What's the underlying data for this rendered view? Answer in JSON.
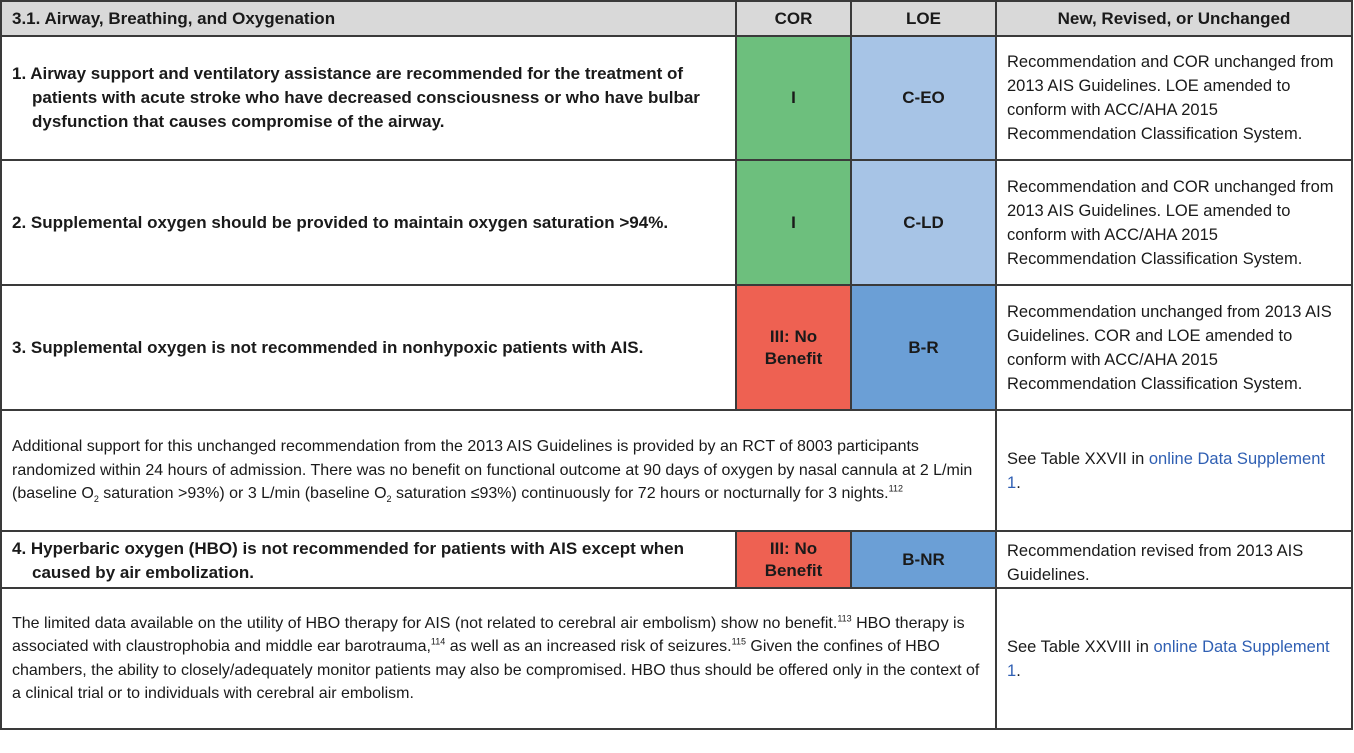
{
  "header": {
    "section": "3.1. Airway, Breathing, and Oxygenation",
    "cor": "COR",
    "loe": "LOE",
    "status": "New, Revised, or Unchanged"
  },
  "rows": [
    {
      "text": "1. Airway support and ventilatory assistance are recommended for the treatment of patients with acute stroke who have decreased consciousness or who have bulbar dysfunction that causes compromise of the airway.",
      "cor": "I",
      "loe": "C-EO",
      "status": "Recommendation and COR unchanged from 2013 AIS Guidelines. LOE amended to conform with ACC/AHA 2015 Recommendation Classification System."
    },
    {
      "text": "2. Supplemental oxygen should be provided to maintain oxygen saturation >94%.",
      "cor": "I",
      "loe": "C-LD",
      "status": "Recommendation and COR unchanged from 2013 AIS Guidelines. LOE amended to conform with ACC/AHA 2015 Recommendation Classification System."
    },
    {
      "text": "3. Supplemental oxygen is not recommended in nonhypoxic patients with AIS.",
      "cor_line1": "III: No",
      "cor_line2": "Benefit",
      "loe": "B-R",
      "status": "Recommendation unchanged from 2013 AIS Guidelines. COR and LOE amended to conform with ACC/AHA 2015 Recommendation Classification System."
    },
    {
      "text": "4. Hyperbaric oxygen (HBO) is not recommended for patients with AIS except when caused by air embolization.",
      "cor_line1": "III: No",
      "cor_line2": "Benefit",
      "loe": "B-NR",
      "status": "Recommendation revised from 2013 AIS Guidelines."
    }
  ],
  "note1": {
    "part_a": "Additional support for this unchanged recommendation from the 2013 AIS Guidelines is provided by an RCT of 8003 participants randomized within 24 hours of admission. There was no benefit on functional outcome at 90 days of oxygen by nasal cannula at 2 L/min (baseline O",
    "sub_a": "2",
    "part_b": " saturation >93%) or 3 L/min (baseline O",
    "sub_b": "2",
    "part_c": " saturation ≤93%) continuously for 72 hours or nocturnally for 3 nights.",
    "ref": "112",
    "see_prefix": "See Table XXVII in ",
    "see_link": "online Data Supplement 1",
    "see_suffix": "."
  },
  "note2": {
    "part_a": "The limited data available on the utility of HBO therapy for AIS (not related to cerebral air embolism) show no benefit.",
    "ref_a": "113",
    "part_b": " HBO therapy is associated with claustrophobia and middle ear barotrauma,",
    "ref_b": "114",
    "part_c": " as well as an increased risk of seizures.",
    "ref_c": "115",
    "part_d": " Given the confines of HBO chambers, the ability to closely/adequately monitor patients may also be compromised. HBO thus should be offered only in the context of a clinical trial or to individuals with cerebral air embolism.",
    "see_prefix": "See Table XXVIII in ",
    "see_link": "online Data Supplement 1",
    "see_suffix": "."
  },
  "colors": {
    "cor_class_i": "#6dbf7d",
    "cor_class_iii": "#ee6152",
    "loe_c": "#a7c4e6",
    "loe_b": "#6b9fd6",
    "header_bg": "#d9d9d9",
    "link": "#2f5fb3"
  }
}
